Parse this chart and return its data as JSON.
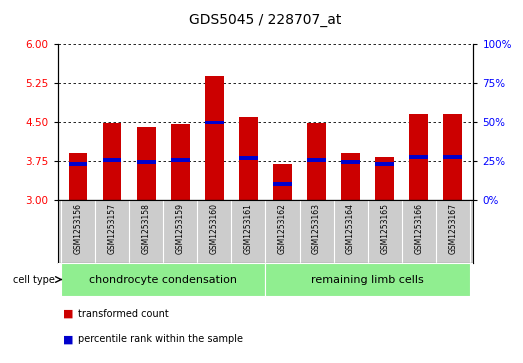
{
  "title": "GDS5045 / 228707_at",
  "samples": [
    "GSM1253156",
    "GSM1253157",
    "GSM1253158",
    "GSM1253159",
    "GSM1253160",
    "GSM1253161",
    "GSM1253162",
    "GSM1253163",
    "GSM1253164",
    "GSM1253165",
    "GSM1253166",
    "GSM1253167"
  ],
  "bar_values": [
    3.9,
    4.48,
    4.4,
    4.45,
    5.38,
    4.58,
    3.68,
    4.48,
    3.9,
    3.82,
    4.65,
    4.65
  ],
  "blue_values": [
    3.68,
    3.76,
    3.72,
    3.76,
    4.48,
    3.8,
    3.3,
    3.76,
    3.72,
    3.68,
    3.82,
    3.82
  ],
  "ylim_left": [
    3.0,
    6.0
  ],
  "yticks_left": [
    3.0,
    3.75,
    4.5,
    5.25,
    6.0
  ],
  "yticks_right": [
    0,
    25,
    50,
    75,
    100
  ],
  "bar_color": "#cc0000",
  "blue_color": "#0000cc",
  "bar_width": 0.55,
  "group1_label": "chondrocyte condensation",
  "group2_label": "remaining limb cells",
  "group1_indices": [
    0,
    1,
    2,
    3,
    4,
    5
  ],
  "group2_indices": [
    6,
    7,
    8,
    9,
    10,
    11
  ],
  "cell_type_label": "cell type",
  "legend1": "transformed count",
  "legend2": "percentile rank within the sample",
  "background_color": "#ffffff",
  "sample_label_bg": "#cccccc",
  "group_area_color": "#90ee90",
  "title_fontsize": 10,
  "tick_fontsize": 7.5,
  "label_fontsize": 7,
  "group_fontsize": 8
}
